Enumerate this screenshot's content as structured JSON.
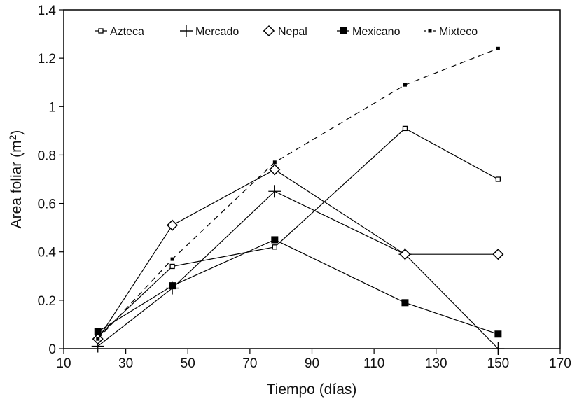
{
  "chart_data": {
    "type": "line",
    "xlabel": "Tiempo  (días)",
    "ylabel": "Area foliar  (m²)",
    "ylabel_main": "Area foliar  (m",
    "ylabel_sup": "2",
    "ylabel_close": ")",
    "xlim": [
      10,
      170
    ],
    "ylim": [
      0,
      1.4
    ],
    "xticks": [
      10,
      30,
      50,
      70,
      90,
      110,
      130,
      150,
      170
    ],
    "yticks": [
      0,
      0.2,
      0.4,
      0.6,
      0.8,
      1,
      1.2,
      1.4
    ],
    "ytick_labels": [
      "0",
      "0.2",
      "0.4",
      "0.6",
      "0.8",
      "1",
      "1.2",
      "1.4"
    ],
    "grid": false,
    "legend_position": "top-inside",
    "series": [
      {
        "name": "Azteca",
        "marker": "open-square",
        "line_style": "solid",
        "x": [
          21,
          45,
          78,
          120,
          150
        ],
        "y": [
          0.05,
          0.34,
          0.42,
          0.91,
          0.7
        ]
      },
      {
        "name": "Mercado",
        "marker": "plus",
        "line_style": "solid",
        "x": [
          21,
          45,
          78,
          120,
          150
        ],
        "y": [
          0.01,
          0.25,
          0.65,
          0.39,
          0.0
        ]
      },
      {
        "name": "Nepal",
        "marker": "open-diamond",
        "line_style": "solid",
        "x": [
          21,
          45,
          78,
          120,
          150
        ],
        "y": [
          0.04,
          0.51,
          0.74,
          0.39,
          0.39
        ]
      },
      {
        "name": "Mexicano",
        "marker": "filled-square",
        "line_style": "solid",
        "x": [
          21,
          45,
          78,
          120,
          150
        ],
        "y": [
          0.07,
          0.26,
          0.45,
          0.19,
          0.06
        ]
      },
      {
        "name": "Mixteco",
        "marker": "small-filled-square",
        "line_style": "dashed",
        "x": [
          21,
          45,
          78,
          120,
          150
        ],
        "y": [
          0.04,
          0.37,
          0.77,
          1.09,
          1.24
        ]
      }
    ]
  }
}
